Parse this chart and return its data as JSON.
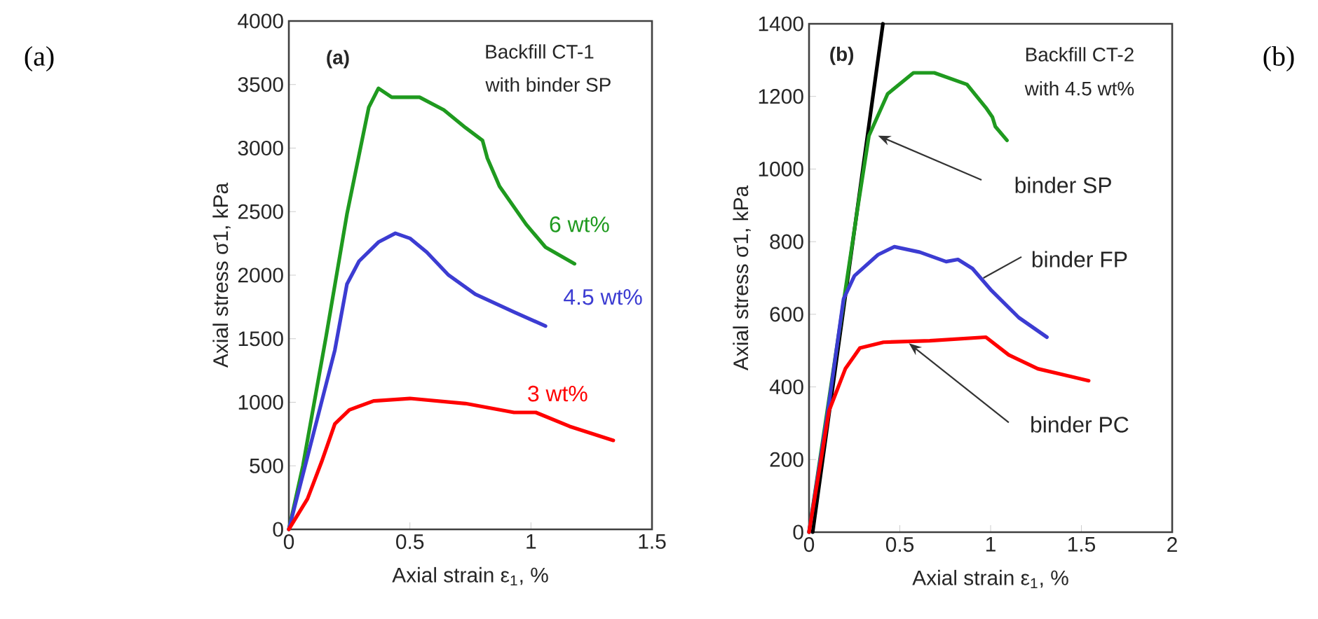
{
  "chart_data": [
    {
      "type": "line",
      "xlabel": "Axial strain  ε$_{1}$, %",
      "ylabel": "Axial stress  σ1, kPa",
      "xlim": [
        0,
        1.5
      ],
      "ylim": [
        0,
        4000
      ],
      "xticks": [
        0,
        0.5,
        1,
        1.5
      ],
      "yticks": [
        0,
        500,
        1000,
        1500,
        2000,
        2500,
        3000,
        3500,
        4000
      ],
      "annotations": [
        "(a)",
        "(a)",
        "Backfill CT-1",
        "with binder SP"
      ],
      "series": [
        {
          "name": "6 wt%",
          "color": "#1f9a1f",
          "x": [
            0,
            0.058,
            0.154,
            0.24,
            0.33,
            0.37,
            0.425,
            0.54,
            0.64,
            0.73,
            0.8,
            0.82,
            0.87,
            0.98,
            1.06,
            1.18
          ],
          "values": [
            0,
            500,
            1520,
            2480,
            3320,
            3470,
            3400,
            3400,
            3300,
            3160,
            3060,
            2920,
            2700,
            2400,
            2220,
            2090
          ]
        },
        {
          "name": "4.5 wt%",
          "color": "#3c3cd2",
          "x": [
            0,
            0.116,
            0.19,
            0.24,
            0.29,
            0.37,
            0.44,
            0.5,
            0.57,
            0.66,
            0.77,
            0.93,
            1.06
          ],
          "values": [
            0,
            860,
            1410,
            1930,
            2110,
            2260,
            2330,
            2290,
            2180,
            2000,
            1850,
            1710,
            1600
          ]
        },
        {
          "name": "3 wt%",
          "color": "#ff0000",
          "x": [
            0,
            0.077,
            0.135,
            0.19,
            0.25,
            0.35,
            0.5,
            0.73,
            0.93,
            1.02,
            1.16,
            1.34
          ],
          "values": [
            0,
            240,
            530,
            830,
            940,
            1010,
            1030,
            990,
            920,
            920,
            810,
            700
          ]
        }
      ]
    },
    {
      "type": "line",
      "xlabel": "Axial strain  ε$_{1}$, %",
      "ylabel": "Axial stress  σ1, kPa",
      "xlim": [
        0,
        2
      ],
      "ylim": [
        0,
        1400
      ],
      "xticks": [
        0,
        0.5,
        1,
        1.5,
        2
      ],
      "yticks": [
        0,
        200,
        400,
        600,
        800,
        1000,
        1200,
        1400
      ],
      "annotations": [
        "(b)",
        "(b)",
        "Backfill CT-2",
        "with 4.5 wt%"
      ],
      "series": [
        {
          "color": "#000000",
          "x": [
            0.02,
            0.407
          ],
          "values": [
            0,
            1400
          ]
        },
        {
          "name": "binder SP",
          "color": "#1f9a1f",
          "x": [
            0,
            0.27,
            0.33,
            0.433,
            0.575,
            0.69,
            0.87,
            0.974,
            1.01,
            1.026,
            1.09
          ],
          "values": [
            0,
            900,
            1092,
            1207,
            1265,
            1265,
            1233,
            1169,
            1143,
            1117,
            1079
          ]
        },
        {
          "name": "binder FP",
          "color": "#3c3cd2",
          "x": [
            0,
            0.1,
            0.19,
            0.25,
            0.38,
            0.47,
            0.61,
            0.755,
            0.82,
            0.9,
            1.0,
            1.155,
            1.31
          ],
          "values": [
            0,
            320,
            642,
            706,
            764,
            786,
            771,
            745,
            751,
            726,
            668,
            591,
            537
          ]
        },
        {
          "name": "binder PC",
          "color": "#ff0000",
          "x": [
            0,
            0.11,
            0.2,
            0.28,
            0.41,
            0.665,
            0.974,
            1.1,
            1.26,
            1.54
          ],
          "values": [
            0,
            334,
            450,
            507,
            523,
            527,
            537,
            488,
            450,
            417
          ]
        }
      ]
    }
  ]
}
